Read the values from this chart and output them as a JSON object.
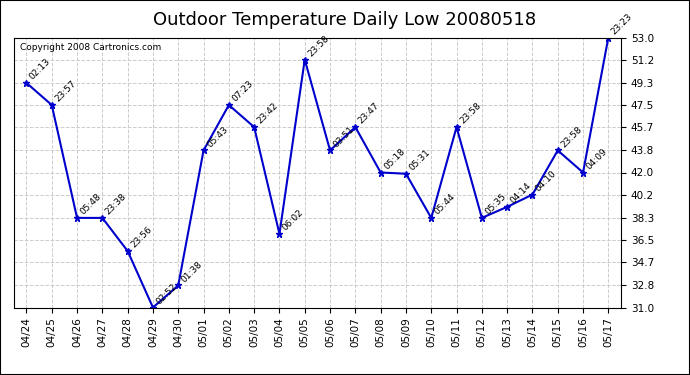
{
  "title": "Outdoor Temperature Daily Low 20080518",
  "copyright": "Copyright 2008 Cartronics.com",
  "dates": [
    "04/24",
    "04/25",
    "04/26",
    "04/27",
    "04/28",
    "04/29",
    "04/30",
    "05/01",
    "05/02",
    "05/03",
    "05/04",
    "05/05",
    "05/06",
    "05/07",
    "05/08",
    "05/09",
    "05/10",
    "05/11",
    "05/12",
    "05/13",
    "05/14",
    "05/15",
    "05/16",
    "05/17"
  ],
  "values": [
    49.3,
    47.5,
    38.3,
    38.3,
    35.6,
    31.0,
    32.8,
    43.8,
    47.5,
    45.7,
    37.0,
    51.2,
    43.8,
    45.7,
    42.0,
    41.9,
    38.3,
    45.7,
    38.3,
    39.2,
    40.2,
    43.8,
    42.0,
    53.0
  ],
  "labels": [
    "02:13",
    "23:57",
    "05:48",
    "23:38",
    "23:56",
    "02:52",
    "01:38",
    "05:43",
    "07:23",
    "23:42",
    "06:02",
    "23:58",
    "03:51",
    "23:47",
    "05:18",
    "05:31",
    "05:44",
    "23:58",
    "05:35",
    "04:14",
    "04:10",
    "23:58",
    "04:09",
    "23:23"
  ],
  "ylim": [
    31.0,
    53.0
  ],
  "yticks": [
    31.0,
    32.8,
    34.7,
    36.5,
    38.3,
    40.2,
    42.0,
    43.8,
    45.7,
    47.5,
    49.3,
    51.2,
    53.0
  ],
  "line_color": "#0000cc",
  "marker_color": "#0000cc",
  "bg_color": "#ffffff",
  "grid_color": "#cccccc",
  "title_fontsize": 13,
  "label_fontsize": 6.5,
  "tick_fontsize": 7.5,
  "copyright_fontsize": 6.5
}
